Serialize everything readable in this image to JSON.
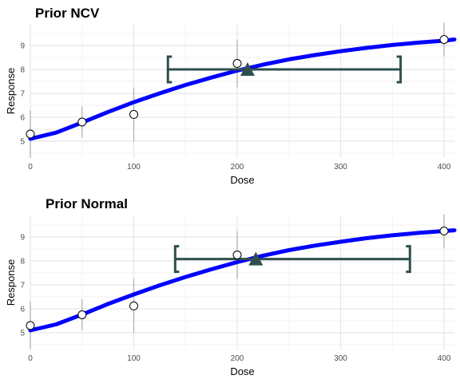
{
  "colors": {
    "curve": "#0000ff",
    "interval": "#2f4f4f",
    "errorbar": "#b3b3b3",
    "grid_major": "#e6e6e6",
    "grid_minor": "#f2f2f2"
  },
  "chart_data": [
    {
      "type": "line",
      "title": "Prior NCV",
      "xlabel": "Dose",
      "ylabel": "Response",
      "xlim": [
        0,
        410
      ],
      "ylim": [
        4.3,
        9.9
      ],
      "xticks": [
        0,
        100,
        200,
        300,
        400
      ],
      "yticks": [
        5,
        6,
        7,
        8,
        9
      ],
      "xtick_labels": [
        "0",
        "100",
        "200",
        "300",
        "400"
      ],
      "ytick_labels": [
        "5",
        "6",
        "7",
        "8",
        "9"
      ],
      "grid": true,
      "curve": {
        "x": [
          0,
          25,
          50,
          75,
          100,
          125,
          150,
          175,
          200,
          225,
          250,
          275,
          300,
          325,
          350,
          375,
          400,
          410
        ],
        "y": [
          5.1,
          5.36,
          5.78,
          6.22,
          6.63,
          7.0,
          7.35,
          7.66,
          7.95,
          8.2,
          8.42,
          8.6,
          8.76,
          8.9,
          9.02,
          9.12,
          9.2,
          9.25
        ]
      },
      "points": [
        {
          "x": 0,
          "y": 5.3,
          "lo": 4.3,
          "hi": 6.3
        },
        {
          "x": 50,
          "y": 5.8,
          "lo": 5.15,
          "hi": 6.45
        },
        {
          "x": 100,
          "y": 6.12,
          "lo": 5.0,
          "hi": 7.25
        },
        {
          "x": 200,
          "y": 8.25,
          "lo": 7.25,
          "hi": 9.25
        },
        {
          "x": 400,
          "y": 9.25,
          "lo": 8.55,
          "hi": 9.95
        }
      ],
      "interval": {
        "lower": 133,
        "upper": 358,
        "y": 8.0,
        "estimate": 210
      }
    },
    {
      "type": "line",
      "title": "Prior Normal",
      "xlabel": "Dose",
      "ylabel": "Response",
      "xlim": [
        0,
        410
      ],
      "ylim": [
        4.3,
        9.9
      ],
      "xticks": [
        0,
        100,
        200,
        300,
        400
      ],
      "yticks": [
        5,
        6,
        7,
        8,
        9
      ],
      "xtick_labels": [
        "0",
        "100",
        "200",
        "300",
        "400"
      ],
      "ytick_labels": [
        "5",
        "6",
        "7",
        "8",
        "9"
      ],
      "grid": true,
      "curve": {
        "x": [
          0,
          25,
          50,
          75,
          100,
          125,
          150,
          175,
          200,
          225,
          250,
          275,
          300,
          325,
          350,
          375,
          400,
          410
        ],
        "y": [
          5.1,
          5.35,
          5.76,
          6.2,
          6.6,
          6.98,
          7.33,
          7.65,
          7.95,
          8.22,
          8.45,
          8.64,
          8.8,
          8.95,
          9.07,
          9.17,
          9.25,
          9.28
        ]
      },
      "points": [
        {
          "x": 0,
          "y": 5.3,
          "lo": 4.3,
          "hi": 6.3
        },
        {
          "x": 50,
          "y": 5.75,
          "lo": 5.1,
          "hi": 6.4
        },
        {
          "x": 100,
          "y": 6.12,
          "lo": 5.0,
          "hi": 7.25
        },
        {
          "x": 200,
          "y": 8.25,
          "lo": 7.25,
          "hi": 9.25
        },
        {
          "x": 400,
          "y": 9.25,
          "lo": 8.55,
          "hi": 9.95
        }
      ],
      "interval": {
        "lower": 140,
        "upper": 367,
        "y": 8.08,
        "estimate": 218
      }
    }
  ]
}
